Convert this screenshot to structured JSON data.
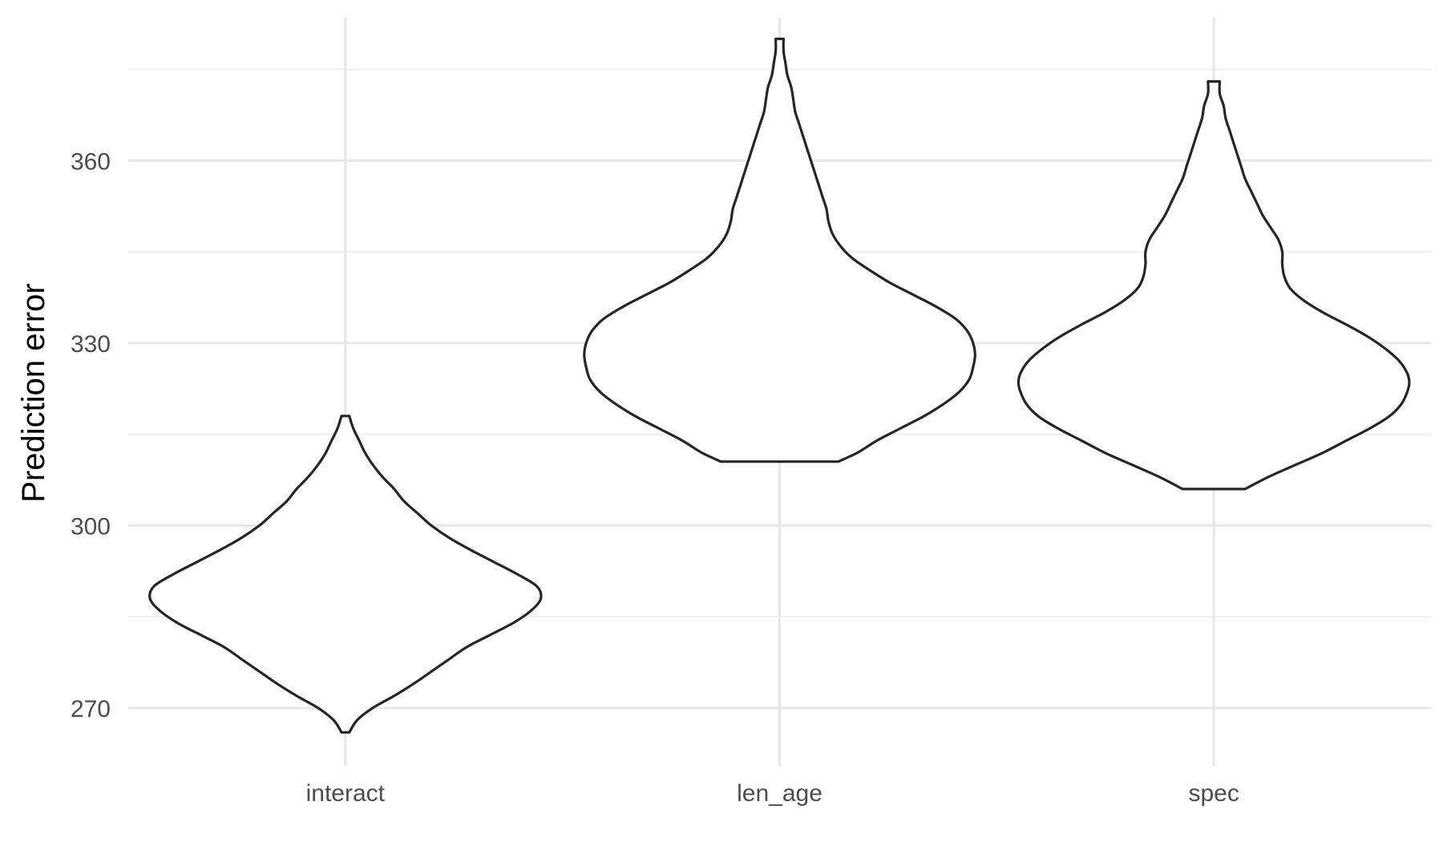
{
  "chart_data": {
    "type": "violin",
    "title": "",
    "xlabel": "",
    "ylabel": "Prediction error",
    "ylim": [
      260.5,
      383.5
    ],
    "yticks": [
      270,
      300,
      330,
      360
    ],
    "grid": true,
    "legend": "none",
    "colors": {
      "outline": "#262626",
      "fill": "#ffffff",
      "grid": "#e6e6e6"
    },
    "categories": [
      "interact",
      "len_age",
      "spec"
    ],
    "series": [
      {
        "category": "interact",
        "min": 266,
        "max": 318,
        "density": [
          [
            266,
            0.02
          ],
          [
            268,
            0.06
          ],
          [
            270,
            0.14
          ],
          [
            272,
            0.25
          ],
          [
            274,
            0.35
          ],
          [
            276,
            0.44
          ],
          [
            278,
            0.53
          ],
          [
            280,
            0.62
          ],
          [
            282,
            0.74
          ],
          [
            284,
            0.86
          ],
          [
            286,
            0.95
          ],
          [
            288,
            1.0
          ],
          [
            290,
            0.98
          ],
          [
            292,
            0.88
          ],
          [
            294,
            0.76
          ],
          [
            296,
            0.64
          ],
          [
            298,
            0.53
          ],
          [
            300,
            0.44
          ],
          [
            302,
            0.37
          ],
          [
            304,
            0.3
          ],
          [
            306,
            0.25
          ],
          [
            308,
            0.19
          ],
          [
            310,
            0.14
          ],
          [
            312,
            0.1
          ],
          [
            314,
            0.07
          ],
          [
            316,
            0.04
          ],
          [
            318,
            0.02
          ]
        ]
      },
      {
        "category": "len_age",
        "min": 310.5,
        "max": 380,
        "density": [
          [
            310.5,
            0.3
          ],
          [
            312,
            0.4
          ],
          [
            314,
            0.5
          ],
          [
            316,
            0.62
          ],
          [
            318,
            0.74
          ],
          [
            320,
            0.84
          ],
          [
            322,
            0.92
          ],
          [
            324,
            0.97
          ],
          [
            326,
            0.99
          ],
          [
            328,
            1.0
          ],
          [
            330,
            0.99
          ],
          [
            332,
            0.96
          ],
          [
            334,
            0.9
          ],
          [
            336,
            0.8
          ],
          [
            338,
            0.68
          ],
          [
            340,
            0.56
          ],
          [
            342,
            0.46
          ],
          [
            344,
            0.37
          ],
          [
            346,
            0.31
          ],
          [
            348,
            0.27
          ],
          [
            350,
            0.25
          ],
          [
            352,
            0.24
          ],
          [
            354,
            0.22
          ],
          [
            356,
            0.2
          ],
          [
            358,
            0.18
          ],
          [
            360,
            0.16
          ],
          [
            362,
            0.14
          ],
          [
            364,
            0.12
          ],
          [
            366,
            0.1
          ],
          [
            368,
            0.08
          ],
          [
            370,
            0.07
          ],
          [
            372,
            0.06
          ],
          [
            374,
            0.04
          ],
          [
            376,
            0.03
          ],
          [
            378,
            0.02
          ],
          [
            380,
            0.02
          ]
        ]
      },
      {
        "category": "spec",
        "min": 306,
        "max": 373,
        "density": [
          [
            306,
            0.16
          ],
          [
            308,
            0.28
          ],
          [
            310,
            0.42
          ],
          [
            312,
            0.56
          ],
          [
            314,
            0.68
          ],
          [
            316,
            0.8
          ],
          [
            318,
            0.9
          ],
          [
            320,
            0.96
          ],
          [
            322,
            0.99
          ],
          [
            323.5,
            1.0
          ],
          [
            325,
            0.99
          ],
          [
            327,
            0.95
          ],
          [
            329,
            0.88
          ],
          [
            331,
            0.79
          ],
          [
            333,
            0.68
          ],
          [
            335,
            0.56
          ],
          [
            337,
            0.46
          ],
          [
            339,
            0.39
          ],
          [
            341,
            0.36
          ],
          [
            343,
            0.35
          ],
          [
            345,
            0.35
          ],
          [
            347,
            0.33
          ],
          [
            349,
            0.29
          ],
          [
            351,
            0.25
          ],
          [
            353,
            0.22
          ],
          [
            355,
            0.19
          ],
          [
            357,
            0.16
          ],
          [
            359,
            0.14
          ],
          [
            361,
            0.12
          ],
          [
            363,
            0.1
          ],
          [
            365,
            0.08
          ],
          [
            367,
            0.06
          ],
          [
            369,
            0.05
          ],
          [
            371,
            0.03
          ],
          [
            373,
            0.03
          ]
        ]
      }
    ]
  }
}
